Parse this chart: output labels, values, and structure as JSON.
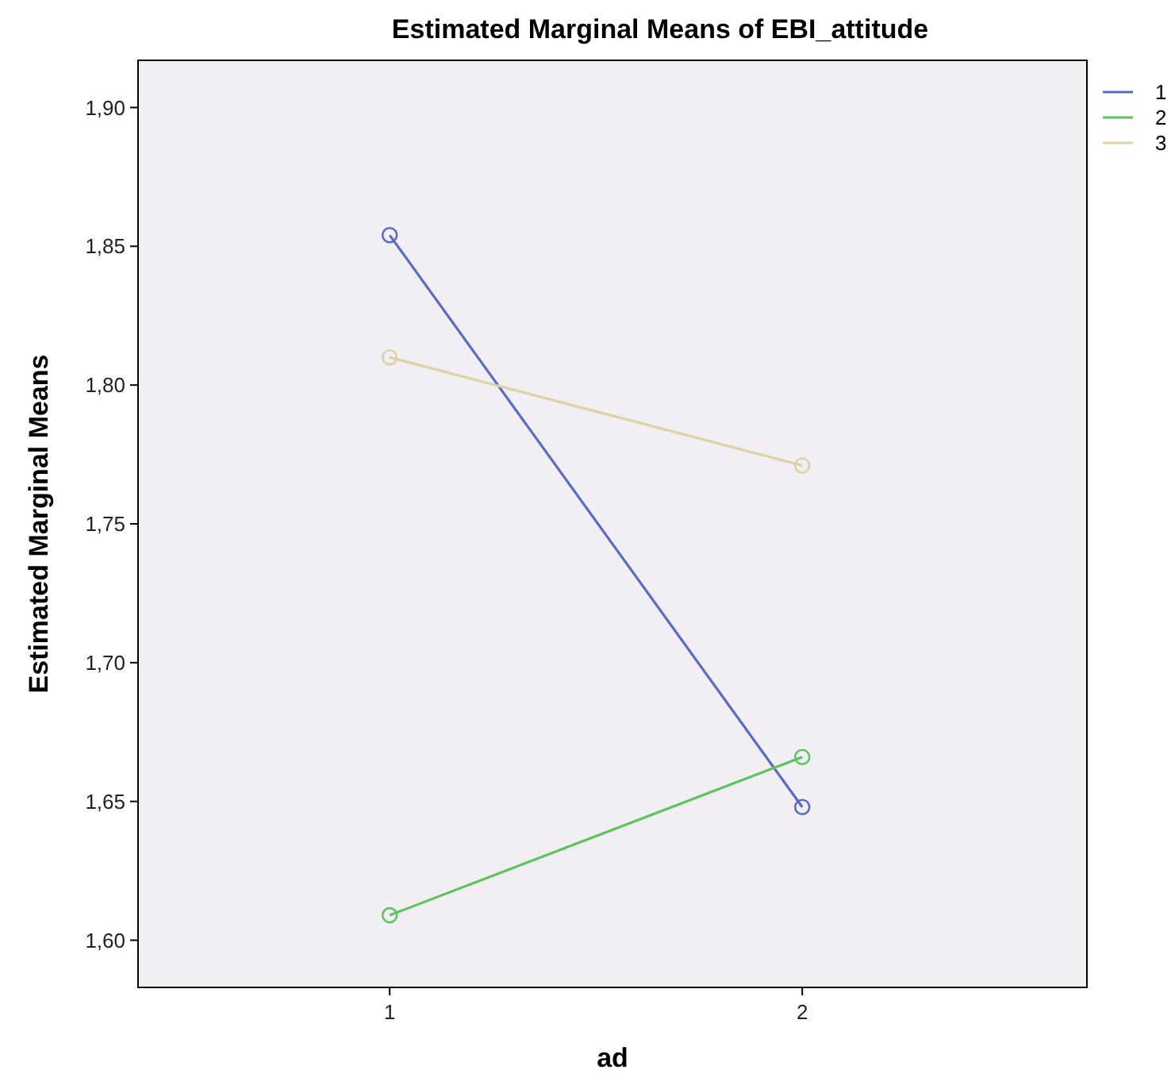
{
  "chart_data": {
    "type": "line",
    "title": "Estimated Marginal Means of EBI_attitude",
    "xlabel": "ad",
    "ylabel": "Estimated Marginal Means",
    "x": [
      1,
      2
    ],
    "xlim": [
      0.39,
      2.69
    ],
    "xticks": [
      1,
      2
    ],
    "ylim": [
      1.583,
      1.917
    ],
    "yticks": [
      {
        "value": 1.6,
        "label": "1,60"
      },
      {
        "value": 1.65,
        "label": "1,65"
      },
      {
        "value": 1.7,
        "label": "1,70"
      },
      {
        "value": 1.75,
        "label": "1,75"
      },
      {
        "value": 1.8,
        "label": "1,80"
      },
      {
        "value": 1.85,
        "label": "1,85"
      },
      {
        "value": 1.9,
        "label": "1,90"
      }
    ],
    "series": [
      {
        "name": "1",
        "color": "#5a6bc4",
        "values": [
          1.854,
          1.648
        ]
      },
      {
        "name": "2",
        "color": "#5cc45c",
        "values": [
          1.609,
          1.666
        ]
      },
      {
        "name": "3",
        "color": "#ddd2a2",
        "values": [
          1.81,
          1.771
        ]
      }
    ],
    "marker": "circle",
    "line_style": "solid",
    "grid": false,
    "legend": "top right"
  }
}
